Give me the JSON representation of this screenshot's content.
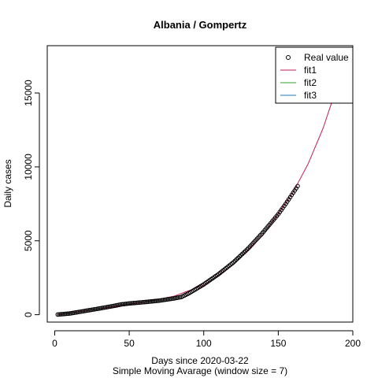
{
  "chart_data": {
    "type": "scatter",
    "title": "Albania / Gompertz",
    "xlabel": "Days since 2020-03-22",
    "sublabel": "Simple Moving Avarage (window size = 7)",
    "ylabel": "Daily cases",
    "xlim": [
      -5,
      200
    ],
    "ylim": [
      -500,
      18200
    ],
    "xticks": [
      0,
      50,
      100,
      150,
      200
    ],
    "yticks": [
      0,
      5000,
      10000,
      15000
    ],
    "grid": false,
    "legend_position": "top-right",
    "legend": [
      {
        "name": "Real value",
        "kind": "point",
        "color": "#000000"
      },
      {
        "name": "fit1",
        "kind": "line",
        "color": "#C21E56"
      },
      {
        "name": "fit2",
        "kind": "line",
        "color": "#33A02C"
      },
      {
        "name": "fit3",
        "kind": "line",
        "color": "#1F78B4"
      }
    ],
    "observed": {
      "name": "Real value",
      "x": [
        2,
        10,
        20,
        30,
        40,
        45,
        50,
        60,
        70,
        80,
        85,
        90,
        100,
        110,
        120,
        130,
        140,
        150,
        155,
        160,
        163
      ],
      "y": [
        10,
        80,
        250,
        420,
        600,
        700,
        760,
        850,
        950,
        1100,
        1200,
        1450,
        2050,
        2750,
        3550,
        4500,
        5600,
        6800,
        7500,
        8250,
        8700
      ]
    },
    "fit1": {
      "name": "fit1",
      "x": [
        2,
        20,
        40,
        60,
        80,
        100,
        120,
        140,
        160,
        170,
        180,
        190,
        196
      ],
      "y": [
        0,
        250,
        550,
        850,
        1250,
        2000,
        3400,
        5400,
        8300,
        10200,
        12600,
        15600,
        18000
      ]
    }
  }
}
